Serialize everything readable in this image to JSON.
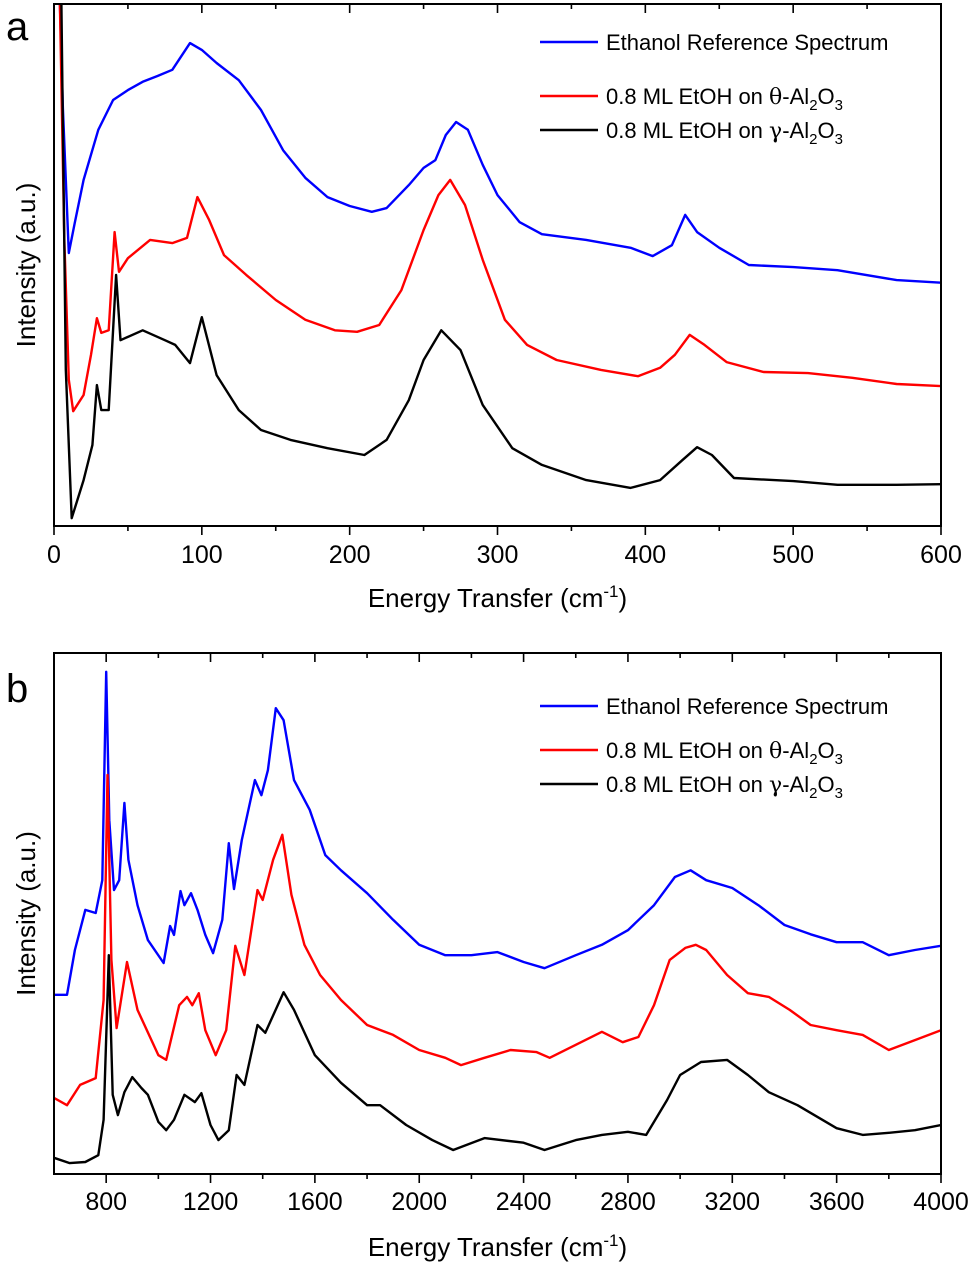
{
  "chart_data": [
    {
      "type": "line",
      "panel_label": "a",
      "title": "",
      "xlabel": "Energy Transfer (cm",
      "xlabel_sup": "-1",
      "xlabel_end": ")",
      "ylabel": "Intensity (a.u.)",
      "xlim": [
        0,
        600
      ],
      "ylim": [
        0,
        100
      ],
      "y_units_note": "arbitrary, normalized to plot frame",
      "xticks": [
        0,
        100,
        200,
        300,
        400,
        500,
        600
      ],
      "xticks_minor": [
        50,
        150,
        250,
        350,
        450,
        550
      ],
      "grid": false,
      "legend_position": "top-right",
      "series": [
        {
          "name": "Ethanol Reference Spectrum",
          "color": "#0000ff",
          "x": [
            4,
            6,
            10,
            14,
            20,
            30,
            40,
            50,
            60,
            70,
            80,
            92,
            100,
            110,
            125,
            140,
            155,
            170,
            185,
            200,
            215,
            225,
            240,
            250,
            258,
            265,
            272,
            280,
            290,
            300,
            315,
            330,
            360,
            390,
            405,
            418,
            427,
            435,
            450,
            470,
            500,
            530,
            570,
            600
          ],
          "y": [
            100,
            80,
            52.3,
            58,
            66.3,
            75.9,
            81.6,
            83.5,
            85.1,
            86.2,
            87.4,
            92.5,
            91.2,
            88.7,
            85.4,
            79.7,
            72.0,
            66.7,
            63.0,
            61.3,
            60.2,
            60.9,
            65.3,
            68.6,
            70.1,
            74.9,
            77.4,
            75.9,
            69.2,
            63.4,
            58.2,
            55.9,
            54.8,
            53.3,
            51.7,
            53.8,
            59.6,
            56.3,
            53.3,
            50.0,
            49.6,
            49.0,
            47.1,
            46.6
          ]
        },
        {
          "name": "0.8 ML EtOH on θ-Al2O3",
          "color": "#ff0000",
          "x": [
            4,
            7,
            10,
            13,
            20,
            25,
            29,
            32,
            37,
            41,
            44,
            50,
            65,
            80,
            90,
            97,
            105,
            115,
            130,
            150,
            170,
            190,
            205,
            220,
            235,
            250,
            260,
            268,
            278,
            290,
            305,
            320,
            340,
            370,
            395,
            410,
            420,
            430,
            440,
            455,
            480,
            510,
            540,
            570,
            600
          ],
          "y": [
            100,
            55,
            28,
            22.0,
            25.1,
            32.8,
            39.8,
            37.0,
            37.5,
            56.3,
            48.7,
            51.3,
            54.8,
            54.2,
            55.2,
            63.0,
            58.6,
            51.9,
            48.1,
            43.3,
            39.5,
            37.5,
            37.2,
            38.5,
            45.2,
            56.7,
            63.4,
            66.3,
            61.5,
            51.0,
            39.5,
            34.7,
            31.8,
            29.9,
            28.7,
            30.3,
            32.8,
            36.6,
            34.7,
            31.4,
            29.5,
            29.3,
            28.4,
            27.2,
            26.8
          ]
        },
        {
          "name": "0.8 ML EtOH on γ-Al2O3",
          "color": "#000000",
          "x": [
            5,
            8,
            12,
            20,
            26,
            29,
            32,
            37,
            42,
            45,
            60,
            75,
            82,
            92,
            100,
            110,
            125,
            140,
            160,
            185,
            210,
            225,
            240,
            250,
            262,
            275,
            290,
            310,
            330,
            360,
            390,
            410,
            425,
            435,
            445,
            460,
            500,
            530,
            570,
            600
          ],
          "y": [
            100,
            30,
            1.5,
            8.8,
            15.5,
            27.0,
            22.2,
            22.2,
            48.1,
            35.6,
            37.5,
            35.6,
            34.7,
            31.2,
            40.0,
            28.9,
            22.2,
            18.4,
            16.5,
            14.9,
            13.6,
            16.5,
            24.1,
            31.8,
            37.5,
            33.7,
            23.2,
            14.9,
            11.7,
            8.8,
            7.3,
            8.8,
            12.6,
            15.1,
            13.6,
            9.2,
            8.6,
            7.9,
            7.9,
            8.0
          ]
        }
      ]
    },
    {
      "type": "line",
      "panel_label": "b",
      "title": "",
      "xlabel": "Energy Transfer (cm",
      "xlabel_sup": "-1",
      "xlabel_end": ")",
      "ylabel": "Intensity (a.u.)",
      "xlim": [
        600,
        4000
      ],
      "ylim": [
        0,
        100
      ],
      "y_units_note": "arbitrary, normalized to plot frame",
      "xticks": [
        800,
        1200,
        1600,
        2000,
        2400,
        2800,
        3200,
        3600,
        4000
      ],
      "xticks_minor": [
        1000,
        1400,
        1800,
        2200,
        2600,
        3000,
        3400,
        3800
      ],
      "grid": false,
      "legend_position": "top-right",
      "series": [
        {
          "name": "Ethanol Reference Spectrum",
          "color": "#0000ff",
          "x": [
            600,
            650,
            680,
            720,
            760,
            785,
            800,
            812,
            830,
            850,
            870,
            885,
            920,
            960,
            1020,
            1045,
            1060,
            1085,
            1100,
            1125,
            1150,
            1180,
            1210,
            1245,
            1270,
            1290,
            1320,
            1370,
            1395,
            1420,
            1450,
            1480,
            1520,
            1580,
            1640,
            1700,
            1800,
            1900,
            2000,
            2100,
            2200,
            2300,
            2400,
            2480,
            2600,
            2700,
            2800,
            2900,
            2980,
            3040,
            3100,
            3200,
            3300,
            3400,
            3500,
            3600,
            3700,
            3800,
            3900,
            4000
          ],
          "y": [
            34.4,
            34.4,
            43.0,
            50.7,
            50.1,
            56.4,
            96.4,
            67.9,
            54.5,
            56.4,
            71.2,
            60.3,
            51.6,
            44.9,
            40.5,
            47.6,
            45.9,
            54.3,
            51.6,
            53.9,
            50.7,
            45.9,
            42.4,
            48.8,
            63.5,
            54.7,
            64.1,
            75.6,
            72.7,
            77.5,
            89.4,
            87.1,
            75.6,
            69.9,
            61.2,
            58.3,
            53.9,
            48.8,
            44.0,
            42.0,
            42.0,
            42.6,
            40.7,
            39.5,
            42.0,
            44.0,
            46.8,
            51.6,
            57.0,
            58.3,
            56.4,
            54.9,
            51.6,
            47.8,
            46.0,
            44.5,
            44.5,
            42.0,
            43.0,
            43.8
          ]
        },
        {
          "name": "0.8 ML EtOH on θ-Al2O3",
          "color": "#ff0000",
          "x": [
            600,
            650,
            700,
            760,
            790,
            805,
            820,
            840,
            880,
            920,
            1000,
            1030,
            1080,
            1110,
            1130,
            1155,
            1180,
            1220,
            1260,
            1295,
            1330,
            1380,
            1400,
            1440,
            1475,
            1510,
            1560,
            1620,
            1700,
            1800,
            1900,
            2000,
            2100,
            2160,
            2250,
            2350,
            2450,
            2500,
            2600,
            2700,
            2780,
            2840,
            2900,
            2960,
            3020,
            3060,
            3100,
            3180,
            3260,
            3340,
            3420,
            3500,
            3600,
            3700,
            3800,
            3900,
            4000
          ],
          "y": [
            14.6,
            13.2,
            17.1,
            18.4,
            33.4,
            76.6,
            41.1,
            28.0,
            40.7,
            31.5,
            22.8,
            21.9,
            32.4,
            34.0,
            32.4,
            34.7,
            27.6,
            22.8,
            27.6,
            43.8,
            38.2,
            54.5,
            52.6,
            60.3,
            65.1,
            53.6,
            44.0,
            38.2,
            33.4,
            28.6,
            26.7,
            23.8,
            22.3,
            20.9,
            22.3,
            23.8,
            23.4,
            22.3,
            24.8,
            27.3,
            25.3,
            26.3,
            32.4,
            41.1,
            43.4,
            44.0,
            43.0,
            38.2,
            34.7,
            34.0,
            31.5,
            28.6,
            27.6,
            26.7,
            23.8,
            25.7,
            27.6
          ]
        },
        {
          "name": "0.8 ML EtOH on γ-Al2O3",
          "color": "#000000",
          "x": [
            600,
            660,
            720,
            770,
            790,
            810,
            825,
            845,
            870,
            900,
            935,
            960,
            1000,
            1030,
            1060,
            1100,
            1140,
            1165,
            1200,
            1230,
            1270,
            1300,
            1330,
            1380,
            1410,
            1480,
            1520,
            1600,
            1700,
            1800,
            1850,
            1950,
            2050,
            2130,
            2250,
            2400,
            2480,
            2600,
            2700,
            2800,
            2870,
            2950,
            3000,
            3080,
            3180,
            3260,
            3340,
            3450,
            3600,
            3700,
            3800,
            3900,
            4000
          ],
          "y": [
            3.1,
            2.1,
            2.3,
            3.6,
            10.4,
            42.0,
            15.2,
            11.3,
            15.7,
            18.6,
            16.5,
            15.2,
            10.0,
            8.4,
            10.4,
            15.2,
            13.8,
            15.5,
            9.4,
            6.5,
            8.4,
            19.0,
            17.1,
            28.6,
            27.1,
            34.9,
            31.5,
            22.8,
            17.5,
            13.2,
            13.2,
            9.4,
            6.5,
            4.6,
            6.9,
            6.0,
            4.6,
            6.5,
            7.5,
            8.1,
            7.5,
            14.2,
            19.0,
            21.5,
            21.9,
            19.0,
            15.7,
            13.2,
            8.8,
            7.5,
            7.9,
            8.4,
            9.4
          ]
        }
      ]
    }
  ],
  "legend": {
    "entries": [
      {
        "label": "Ethanol Reference Spectrum",
        "color": "#0000ff",
        "greek": "",
        "sub1": "",
        "sub2": ""
      },
      {
        "label": "0.8 ML EtOH on ",
        "color": "#ff0000",
        "greek": "θ",
        "sub1": "2",
        "sub2": "3"
      },
      {
        "label": "0.8 ML EtOH on ",
        "color": "#000000",
        "greek": "γ",
        "sub1": "2",
        "sub2": "3"
      }
    ],
    "formula_parts": [
      "-Al",
      "O"
    ]
  }
}
